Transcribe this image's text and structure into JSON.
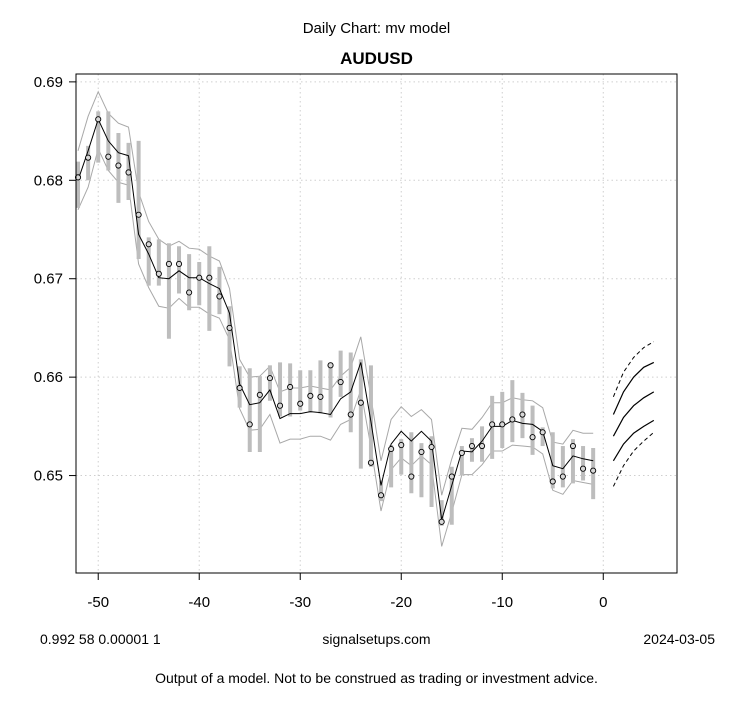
{
  "header": {
    "top_title": "Daily Chart: mv model",
    "main_title": "AUDUSD"
  },
  "footer": {
    "left": "0.992 58 0.00001 1",
    "center": "signalsetups.com",
    "right": "2024-03-05",
    "disclaimer": "Output of a model.  Not to be construed as trading or investment advice."
  },
  "colors": {
    "bar": "#bdbdbd",
    "band": "#a8a8a8",
    "line": "#000000",
    "grid": "#cfcfcf"
  },
  "chart_data": {
    "type": "line",
    "title": "AUDUSD",
    "subtitle": "Daily Chart: mv model",
    "xlabel": "",
    "ylabel": "",
    "xlim": [
      -52.2,
      7.3
    ],
    "ylim": [
      0.6401,
      0.6908
    ],
    "x_ticks": [
      -50,
      -40,
      -30,
      -20,
      -10,
      0
    ],
    "x_tick_labels": [
      "-50",
      "-40",
      "-30",
      "-20",
      "-10",
      "0"
    ],
    "y_ticks": [
      0.65,
      0.66,
      0.67,
      0.68,
      0.69
    ],
    "y_tick_labels": [
      "0.65",
      "0.66",
      "0.67",
      "0.68",
      "0.69"
    ],
    "grid": true,
    "x": [
      -52,
      -51,
      -50,
      -49,
      -48,
      -47,
      -46,
      -45,
      -44,
      -43,
      -42,
      -41,
      -40,
      -39,
      -38,
      -37,
      -36,
      -35,
      -34,
      -33,
      -32,
      -31,
      -30,
      -29,
      -28,
      -27,
      -26,
      -25,
      -24,
      -23,
      -22,
      -21,
      -20,
      -19,
      -18,
      -17,
      -16,
      -15,
      -14,
      -13,
      -12,
      -11,
      -10,
      -9,
      -8,
      -7,
      -6,
      -5,
      -4,
      -3,
      -2,
      -1
    ],
    "close": [
      0.6803,
      0.6823,
      0.6862,
      0.6824,
      0.6815,
      0.6808,
      0.6765,
      0.6735,
      0.6705,
      0.6715,
      0.6715,
      0.6686,
      0.6701,
      0.6701,
      0.6682,
      0.665,
      0.6589,
      0.6552,
      0.6582,
      0.6599,
      0.6571,
      0.659,
      0.6573,
      0.6581,
      0.658,
      0.6612,
      0.6595,
      0.6562,
      0.6574,
      0.6513,
      0.648,
      0.6527,
      0.6531,
      0.6499,
      0.6524,
      0.6529,
      0.6453,
      0.6499,
      0.6523,
      0.653,
      0.653,
      0.6552,
      0.6552,
      0.6557,
      0.6562,
      0.6539,
      0.6544,
      0.6494,
      0.6499,
      0.653,
      0.6507,
      0.6505
    ],
    "high": [
      0.6819,
      0.6835,
      0.687,
      0.687,
      0.6848,
      0.6838,
      0.684,
      0.6742,
      0.674,
      0.6736,
      0.6733,
      0.6725,
      0.6717,
      0.6733,
      0.6712,
      0.6672,
      0.6611,
      0.6609,
      0.6601,
      0.6612,
      0.6615,
      0.6614,
      0.6607,
      0.6607,
      0.6617,
      0.6615,
      0.6627,
      0.6625,
      0.6618,
      0.6612,
      0.6495,
      0.6531,
      0.6537,
      0.6544,
      0.6533,
      0.654,
      0.6475,
      0.6509,
      0.653,
      0.6538,
      0.655,
      0.6581,
      0.6585,
      0.6597,
      0.6584,
      0.6571,
      0.6549,
      0.6544,
      0.653,
      0.6537,
      0.653,
      0.6528
    ],
    "low": [
      0.6772,
      0.68,
      0.6818,
      0.681,
      0.6777,
      0.678,
      0.672,
      0.6693,
      0.6693,
      0.6639,
      0.6685,
      0.6668,
      0.6673,
      0.6647,
      0.6664,
      0.6611,
      0.6569,
      0.6524,
      0.6524,
      0.6576,
      0.656,
      0.656,
      0.6566,
      0.6564,
      0.6563,
      0.6559,
      0.658,
      0.6544,
      0.6507,
      0.6509,
      0.6474,
      0.6488,
      0.6501,
      0.6482,
      0.6478,
      0.6468,
      0.6449,
      0.645,
      0.65,
      0.6514,
      0.6514,
      0.6517,
      0.6528,
      0.6534,
      0.6538,
      0.6521,
      0.653,
      0.6487,
      0.6488,
      0.6492,
      0.6495,
      0.6476
    ],
    "fit": [
      0.68,
      0.683,
      0.6862,
      0.684,
      0.6828,
      0.6825,
      0.6745,
      0.6725,
      0.6701,
      0.67,
      0.6708,
      0.6701,
      0.6701,
      0.6695,
      0.669,
      0.6665,
      0.6593,
      0.6572,
      0.6574,
      0.6587,
      0.6558,
      0.6563,
      0.6563,
      0.6565,
      0.6564,
      0.6562,
      0.6578,
      0.6585,
      0.6615,
      0.6555,
      0.649,
      0.6532,
      0.6545,
      0.6535,
      0.6545,
      0.6535,
      0.6455,
      0.649,
      0.6525,
      0.6524,
      0.6535,
      0.655,
      0.655,
      0.6556,
      0.6553,
      0.6552,
      0.6545,
      0.651,
      0.6507,
      0.652,
      0.6517,
      0.6515
    ],
    "band_upper": [
      0.683,
      0.6865,
      0.689,
      0.6868,
      0.6858,
      0.6854,
      0.6788,
      0.6758,
      0.674,
      0.6733,
      0.6738,
      0.6731,
      0.673,
      0.6723,
      0.6718,
      0.669,
      0.6618,
      0.66,
      0.6601,
      0.6611,
      0.6585,
      0.6589,
      0.6589,
      0.6591,
      0.6589,
      0.6587,
      0.6601,
      0.661,
      0.6641,
      0.658,
      0.6515,
      0.6557,
      0.657,
      0.656,
      0.6567,
      0.6557,
      0.648,
      0.6517,
      0.6548,
      0.6547,
      0.6559,
      0.6574,
      0.6574,
      0.6579,
      0.6577,
      0.6576,
      0.6569,
      0.6534,
      0.6532,
      0.6546,
      0.6543,
      0.6543
    ],
    "band_lower": [
      0.677,
      0.6793,
      0.6832,
      0.681,
      0.6798,
      0.6795,
      0.6715,
      0.6691,
      0.6672,
      0.667,
      0.668,
      0.6671,
      0.6671,
      0.6664,
      0.666,
      0.6638,
      0.6568,
      0.6546,
      0.6547,
      0.6562,
      0.6533,
      0.6537,
      0.6537,
      0.654,
      0.654,
      0.6536,
      0.6552,
      0.6557,
      0.6587,
      0.6529,
      0.6464,
      0.6506,
      0.6518,
      0.651,
      0.652,
      0.6511,
      0.6428,
      0.6463,
      0.6501,
      0.6501,
      0.6511,
      0.6525,
      0.6525,
      0.6531,
      0.653,
      0.6529,
      0.6522,
      0.6485,
      0.6481,
      0.6495,
      0.6493,
      0.6491
    ],
    "forecast_x": [
      1,
      2,
      3,
      4,
      5
    ],
    "forecast_mid": [
      0.654,
      0.6559,
      0.6571,
      0.6579,
      0.6585
    ],
    "forecast_upper1": [
      0.6562,
      0.6585,
      0.66,
      0.661,
      0.6615
    ],
    "forecast_lower1": [
      0.6515,
      0.6532,
      0.6543,
      0.655,
      0.6556
    ],
    "forecast_upper2": [
      0.658,
      0.6605,
      0.662,
      0.663,
      0.6636
    ],
    "forecast_lower2": [
      0.6489,
      0.651,
      0.6525,
      0.6535,
      0.6544
    ]
  }
}
